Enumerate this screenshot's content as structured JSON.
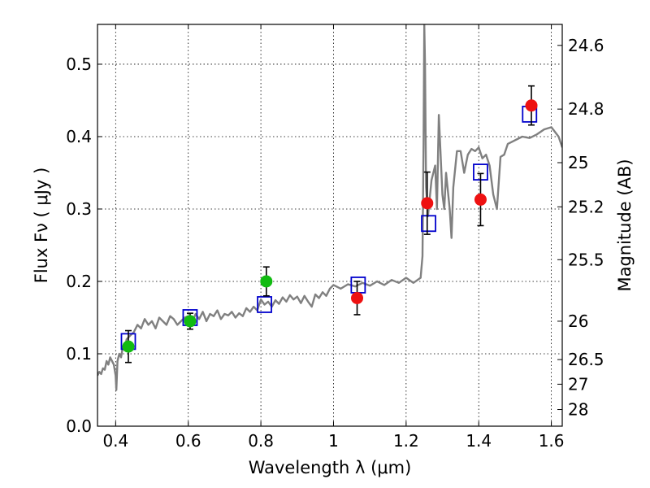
{
  "chart_data": {
    "type": "scatter",
    "xlabel": "Wavelength  λ (μm)",
    "ylabel": "Flux  Fν  ( μJy )",
    "y2label": "Magnitude (AB)",
    "xlim": [
      0.35,
      1.63
    ],
    "ylim": [
      0.0,
      0.555
    ],
    "x_ticks": [
      0.4,
      0.6,
      0.8,
      1.0,
      1.2,
      1.4,
      1.6
    ],
    "x_tick_labels": [
      "0.4",
      "0.6",
      "0.8",
      "1",
      "1.2",
      "1.4",
      "1.6"
    ],
    "y_ticks": [
      0.0,
      0.1,
      0.2,
      0.3,
      0.4,
      0.5
    ],
    "y_tick_labels": [
      "0.0",
      "0.1",
      "0.2",
      "0.3",
      "0.4",
      "0.5"
    ],
    "magnitude_ticks": [
      {
        "label": "24.6",
        "flux": 0.526
      },
      {
        "label": "24.8",
        "flux": 0.438
      },
      {
        "label": "25",
        "flux": 0.364
      },
      {
        "label": "25.2",
        "flux": 0.303
      },
      {
        "label": "25.5",
        "flux": 0.23
      },
      {
        "label": "26",
        "flux": 0.145
      },
      {
        "label": "26.5",
        "flux": 0.092
      },
      {
        "label": "27",
        "flux": 0.058
      },
      {
        "label": "28",
        "flux": 0.023
      }
    ],
    "grid": true,
    "colors": {
      "spectrum": "#808080",
      "optical_points": "#11bb11",
      "nir_points": "#ee1111",
      "model_boxes": "#0000cc",
      "error_bars": "#000000"
    },
    "series": [
      {
        "kind": "line",
        "x": [
          0.35,
          0.355,
          0.36,
          0.365,
          0.37,
          0.375,
          0.38,
          0.385,
          0.39,
          0.395,
          0.4,
          0.402,
          0.405,
          0.41,
          0.415,
          0.42,
          0.425,
          0.43,
          0.44,
          0.45,
          0.46,
          0.47,
          0.48,
          0.49,
          0.5,
          0.51,
          0.52,
          0.53,
          0.54,
          0.55,
          0.56,
          0.57,
          0.58,
          0.59,
          0.6,
          0.61,
          0.62,
          0.63,
          0.64,
          0.65,
          0.66,
          0.67,
          0.68,
          0.69,
          0.7,
          0.71,
          0.72,
          0.73,
          0.74,
          0.75,
          0.76,
          0.77,
          0.78,
          0.79,
          0.8,
          0.81,
          0.82,
          0.83,
          0.84,
          0.85,
          0.86,
          0.87,
          0.88,
          0.89,
          0.9,
          0.91,
          0.92,
          0.93,
          0.94,
          0.95,
          0.96,
          0.97,
          0.98,
          0.99,
          1.0,
          1.02,
          1.04,
          1.06,
          1.08,
          1.1,
          1.12,
          1.14,
          1.16,
          1.18,
          1.2,
          1.22,
          1.24,
          1.245,
          1.248,
          1.25,
          1.252,
          1.255,
          1.26,
          1.27,
          1.28,
          1.285,
          1.29,
          1.3,
          1.305,
          1.31,
          1.32,
          1.325,
          1.33,
          1.34,
          1.35,
          1.36,
          1.37,
          1.38,
          1.39,
          1.4,
          1.41,
          1.42,
          1.43,
          1.44,
          1.45,
          1.46,
          1.47,
          1.48,
          1.5,
          1.52,
          1.54,
          1.56,
          1.58,
          1.6,
          1.62,
          1.63
        ],
        "y": [
          0.07,
          0.075,
          0.072,
          0.08,
          0.078,
          0.09,
          0.085,
          0.095,
          0.09,
          0.085,
          0.07,
          0.05,
          0.09,
          0.1,
          0.095,
          0.11,
          0.105,
          0.12,
          0.125,
          0.13,
          0.14,
          0.135,
          0.148,
          0.14,
          0.145,
          0.135,
          0.15,
          0.145,
          0.14,
          0.152,
          0.148,
          0.14,
          0.145,
          0.15,
          0.152,
          0.142,
          0.155,
          0.148,
          0.158,
          0.145,
          0.155,
          0.152,
          0.16,
          0.148,
          0.155,
          0.153,
          0.158,
          0.15,
          0.156,
          0.152,
          0.163,
          0.158,
          0.165,
          0.16,
          0.175,
          0.168,
          0.172,
          0.165,
          0.174,
          0.169,
          0.178,
          0.172,
          0.181,
          0.175,
          0.179,
          0.17,
          0.18,
          0.172,
          0.165,
          0.182,
          0.177,
          0.185,
          0.18,
          0.19,
          0.195,
          0.19,
          0.196,
          0.193,
          0.198,
          0.194,
          0.2,
          0.195,
          0.202,
          0.198,
          0.205,
          0.198,
          0.205,
          0.235,
          0.39,
          0.555,
          0.5,
          0.33,
          0.29,
          0.34,
          0.36,
          0.3,
          0.43,
          0.32,
          0.3,
          0.35,
          0.3,
          0.26,
          0.33,
          0.38,
          0.38,
          0.35,
          0.375,
          0.383,
          0.38,
          0.385,
          0.37,
          0.375,
          0.36,
          0.32,
          0.3,
          0.372,
          0.375,
          0.39,
          0.395,
          0.4,
          0.398,
          0.403,
          0.41,
          0.413,
          0.4,
          0.385
        ]
      },
      {
        "kind": "points",
        "group": "optical",
        "x": [
          0.435,
          0.605,
          0.815
        ],
        "y": [
          0.11,
          0.145,
          0.2
        ],
        "yerr": [
          0.022,
          0.011,
          0.02
        ]
      },
      {
        "kind": "points",
        "group": "near-infrared",
        "x": [
          1.065,
          1.258,
          1.405,
          1.545
        ],
        "y": [
          0.177,
          0.308,
          0.313,
          0.443
        ],
        "yerr": [
          0.023,
          0.043,
          0.036,
          0.027
        ]
      },
      {
        "kind": "boxes",
        "x": [
          0.435,
          0.605,
          0.81,
          1.068,
          1.262,
          1.405,
          1.54
        ],
        "y": [
          0.117,
          0.15,
          0.168,
          0.195,
          0.28,
          0.351,
          0.431
        ]
      }
    ]
  }
}
